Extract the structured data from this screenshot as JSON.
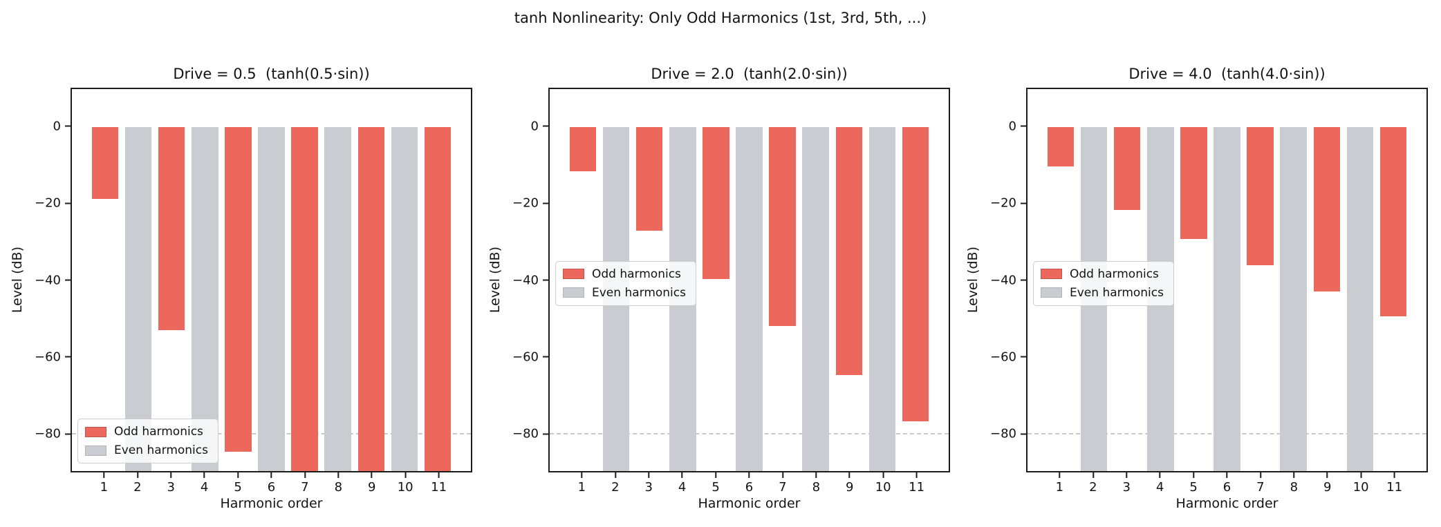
{
  "suptitle": "tanh Nonlinearity: Only Odd Harmonics (1st, 3rd, 5th, ...)",
  "colors": {
    "odd_harmonics": "#ec675c",
    "even_harmonics": "#c9cdd1",
    "reference_line": "#c8c8c8",
    "axis_spine": "#1c1c1c",
    "text": "#131313",
    "legend_border": "#cccccc"
  },
  "chart_data": [
    {
      "type": "bar",
      "title": "Drive = 0.5  (tanh(0.5·sin))",
      "xlabel": "Harmonic order",
      "ylabel": "Level (dB)",
      "categories": [
        1,
        2,
        3,
        4,
        5,
        6,
        7,
        8,
        9,
        10,
        11
      ],
      "xlim": [
        0,
        12
      ],
      "ylim": [
        -90,
        10
      ],
      "bar_width_units": 0.8,
      "yticks": [
        0,
        -20,
        -40,
        -60,
        -80
      ],
      "ytick_labels": [
        "0",
        "−20",
        "−40",
        "−60",
        "−80"
      ],
      "grid": "off",
      "reference_line_db": -80,
      "legend": {
        "loc": "lower left",
        "entries": [
          "Odd harmonics",
          "Even harmonics"
        ]
      },
      "null_value_meaning": "bar extends below the y-axis minimum (clipped at plot bottom)",
      "series": [
        {
          "name": "Odd harmonics",
          "parity": "odd",
          "color": "#ec675c",
          "x": [
            1,
            3,
            5,
            7,
            9,
            11
          ],
          "values_db": [
            -18.7,
            -53.1,
            -85.0,
            null,
            null,
            null
          ]
        },
        {
          "name": "Even harmonics",
          "parity": "even",
          "color": "#c9cdd1",
          "x": [
            2,
            4,
            6,
            8,
            10
          ],
          "values_db": [
            null,
            null,
            null,
            null,
            null
          ]
        }
      ]
    },
    {
      "type": "bar",
      "title": "Drive = 2.0  (tanh(2.0·sin))",
      "xlabel": "Harmonic order",
      "ylabel": "Level (dB)",
      "categories": [
        1,
        2,
        3,
        4,
        5,
        6,
        7,
        8,
        9,
        10,
        11
      ],
      "xlim": [
        0,
        12
      ],
      "ylim": [
        -90,
        10
      ],
      "bar_width_units": 0.8,
      "yticks": [
        0,
        -20,
        -40,
        -60,
        -80
      ],
      "ytick_labels": [
        "0",
        "−20",
        "−40",
        "−60",
        "−80"
      ],
      "grid": "off",
      "reference_line_db": -80,
      "legend": {
        "loc": "center left",
        "entries": [
          "Odd harmonics",
          "Even harmonics"
        ]
      },
      "null_value_meaning": "bar extends below the y-axis minimum (clipped at plot bottom)",
      "series": [
        {
          "name": "Odd harmonics",
          "parity": "odd",
          "color": "#ec675c",
          "x": [
            1,
            3,
            5,
            7,
            9,
            11
          ],
          "values_db": [
            -11.5,
            -27.0,
            -39.7,
            -52.1,
            -64.8,
            -77.0
          ]
        },
        {
          "name": "Even harmonics",
          "parity": "even",
          "color": "#c9cdd1",
          "x": [
            2,
            4,
            6,
            8,
            10
          ],
          "values_db": [
            null,
            null,
            null,
            null,
            null
          ]
        }
      ]
    },
    {
      "type": "bar",
      "title": "Drive = 4.0  (tanh(4.0·sin))",
      "xlabel": "Harmonic order",
      "ylabel": "Level (dB)",
      "categories": [
        1,
        2,
        3,
        4,
        5,
        6,
        7,
        8,
        9,
        10,
        11
      ],
      "xlim": [
        0,
        12
      ],
      "ylim": [
        -90,
        10
      ],
      "bar_width_units": 0.8,
      "yticks": [
        0,
        -20,
        -40,
        -60,
        -80
      ],
      "ytick_labels": [
        "0",
        "−20",
        "−40",
        "−60",
        "−80"
      ],
      "grid": "off",
      "reference_line_db": -80,
      "legend": {
        "loc": "center left",
        "entries": [
          "Odd harmonics",
          "Even harmonics"
        ]
      },
      "null_value_meaning": "bar extends below the y-axis minimum (clipped at plot bottom)",
      "series": [
        {
          "name": "Odd harmonics",
          "parity": "odd",
          "color": "#ec675c",
          "x": [
            1,
            3,
            5,
            7,
            9,
            11
          ],
          "values_db": [
            -10.3,
            -21.6,
            -29.3,
            -36.2,
            -42.9,
            -49.5
          ]
        },
        {
          "name": "Even harmonics",
          "parity": "even",
          "color": "#c9cdd1",
          "x": [
            2,
            4,
            6,
            8,
            10
          ],
          "values_db": [
            null,
            null,
            null,
            null,
            null
          ]
        }
      ]
    }
  ]
}
